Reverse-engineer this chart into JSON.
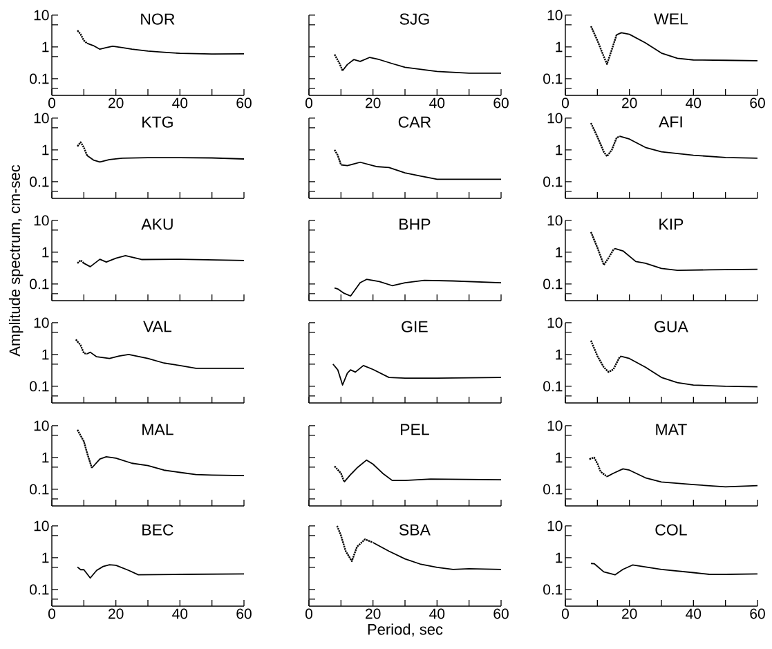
{
  "chart_data": [
    {
      "type": "line",
      "title": "NOR",
      "log": "y",
      "xlim": [
        0,
        60
      ],
      "xticks": [
        0,
        {
          "value": 10,
          "label": null
        },
        20,
        {
          "value": 30,
          "label": null
        },
        40,
        {
          "value": 50,
          "label": null
        },
        60
      ],
      "ylim": [
        0.03,
        10
      ],
      "yticks": [
        {
          "value": 0.05,
          "label": null
        },
        0.1,
        {
          "value": 0.5,
          "label": null
        },
        1,
        {
          "value": 5,
          "label": null
        },
        10
      ],
      "series": [
        {
          "line_style": "dotted",
          "color": "#000000",
          "x": [
            8,
            9,
            10,
            11
          ],
          "values": [
            3.3,
            2.5,
            1.6,
            1.3
          ]
        },
        {
          "line_style": "solid",
          "color": "#000000",
          "x": [
            11,
            13,
            15,
            17,
            19,
            22,
            25,
            30,
            35,
            40,
            50,
            60
          ],
          "values": [
            1.3,
            1.1,
            0.85,
            0.95,
            1.05,
            0.95,
            0.85,
            0.74,
            0.68,
            0.63,
            0.6,
            0.61
          ]
        }
      ]
    },
    {
      "type": "line",
      "title": "SJG",
      "log": "y",
      "tick_labels": "x",
      "xlim": [
        0,
        60
      ],
      "xticks": [
        0,
        {
          "value": 10,
          "label": null
        },
        20,
        {
          "value": 30,
          "label": null
        },
        40,
        {
          "value": 50,
          "label": null
        },
        60
      ],
      "ylim": [
        0.03,
        10
      ],
      "yticks": [
        {
          "value": 0.05,
          "label": null
        },
        {
          "value": 0.1,
          "label": null
        },
        {
          "value": 0.5,
          "label": null
        },
        {
          "value": 1,
          "label": null
        },
        {
          "value": 5,
          "label": null
        },
        {
          "value": 10,
          "label": null
        }
      ],
      "series": [
        {
          "line_style": "dotted",
          "color": "#000000",
          "x": [
            8,
            9.5,
            10.5
          ],
          "values": [
            0.58,
            0.31,
            0.18
          ]
        },
        {
          "line_style": "solid",
          "color": "#000000",
          "x": [
            10.5,
            12,
            14,
            16,
            19,
            22,
            26,
            30,
            40,
            50,
            60
          ],
          "values": [
            0.18,
            0.28,
            0.4,
            0.35,
            0.47,
            0.4,
            0.3,
            0.23,
            0.17,
            0.15,
            0.15
          ]
        }
      ]
    },
    {
      "type": "line",
      "title": "WEL",
      "log": "y",
      "xlim": [
        0,
        60
      ],
      "xticks": [
        0,
        {
          "value": 10,
          "label": null
        },
        20,
        {
          "value": 30,
          "label": null
        },
        40,
        {
          "value": 50,
          "label": null
        },
        60
      ],
      "ylim": [
        0.03,
        10
      ],
      "yticks": [
        {
          "value": 0.05,
          "label": null
        },
        0.1,
        {
          "value": 0.5,
          "label": null
        },
        1,
        {
          "value": 5,
          "label": null
        },
        10
      ],
      "series": [
        {
          "line_style": "dotted",
          "color": "#000000",
          "x": [
            8,
            10,
            12,
            13,
            14.5,
            16
          ],
          "values": [
            4.5,
            1.6,
            0.5,
            0.29,
            0.82,
            2.4
          ]
        },
        {
          "line_style": "solid",
          "color": "#000000",
          "x": [
            16,
            17.5,
            20,
            25,
            30,
            35,
            40,
            50,
            60
          ],
          "values": [
            2.4,
            2.8,
            2.5,
            1.35,
            0.64,
            0.44,
            0.39,
            0.38,
            0.37
          ]
        }
      ]
    },
    {
      "type": "line",
      "title": "KTG",
      "log": "y",
      "tick_labels": "y",
      "xlim": [
        0,
        60
      ],
      "xticks": [
        0,
        {
          "value": 10,
          "label": null
        },
        20,
        {
          "value": 30,
          "label": null
        },
        40,
        {
          "value": 50,
          "label": null
        },
        60
      ],
      "ylim": [
        0.03,
        10
      ],
      "yticks": [
        {
          "value": 0.05,
          "label": null
        },
        0.1,
        {
          "value": 0.5,
          "label": null
        },
        1,
        {
          "value": 5,
          "label": null
        },
        10
      ],
      "series": [
        {
          "line_style": "dotted",
          "color": "#000000",
          "x": [
            8,
            9,
            10,
            11
          ],
          "values": [
            1.3,
            1.76,
            1.2,
            0.67
          ]
        },
        {
          "line_style": "solid",
          "color": "#000000",
          "x": [
            11,
            13,
            15,
            18,
            22,
            30,
            40,
            50,
            60
          ],
          "values": [
            0.67,
            0.48,
            0.42,
            0.5,
            0.55,
            0.57,
            0.57,
            0.56,
            0.52
          ]
        }
      ]
    },
    {
      "type": "line",
      "title": "CAR",
      "log": "y",
      "tick_labels": false,
      "xlim": [
        0,
        60
      ],
      "xticks": [
        0,
        {
          "value": 10,
          "label": null
        },
        20,
        {
          "value": 30,
          "label": null
        },
        40,
        {
          "value": 50,
          "label": null
        },
        60
      ],
      "ylim": [
        0.03,
        10
      ],
      "yticks": [
        {
          "value": 0.05,
          "label": null
        },
        {
          "value": 0.1,
          "label": null
        },
        {
          "value": 0.5,
          "label": null
        },
        {
          "value": 1,
          "label": null
        },
        {
          "value": 5,
          "label": null
        },
        {
          "value": 10,
          "label": null
        }
      ],
      "series": [
        {
          "line_style": "dotted",
          "color": "#000000",
          "x": [
            8,
            9,
            10
          ],
          "values": [
            1.0,
            0.68,
            0.34
          ]
        },
        {
          "line_style": "solid",
          "color": "#000000",
          "x": [
            10,
            12,
            16,
            21,
            25,
            30,
            35,
            40,
            45,
            60
          ],
          "values": [
            0.34,
            0.32,
            0.41,
            0.3,
            0.28,
            0.19,
            0.15,
            0.12,
            0.12,
            0.12
          ]
        }
      ]
    },
    {
      "type": "line",
      "title": "AFI",
      "log": "y",
      "tick_labels": "y",
      "xlim": [
        0,
        60
      ],
      "xticks": [
        0,
        {
          "value": 10,
          "label": null
        },
        20,
        {
          "value": 30,
          "label": null
        },
        40,
        {
          "value": 50,
          "label": null
        },
        60
      ],
      "ylim": [
        0.03,
        10
      ],
      "yticks": [
        {
          "value": 0.05,
          "label": null
        },
        0.1,
        {
          "value": 0.5,
          "label": null
        },
        1,
        {
          "value": 5,
          "label": null
        },
        10
      ],
      "series": [
        {
          "line_style": "dotted",
          "color": "#000000",
          "x": [
            8,
            10,
            12,
            13,
            14.5,
            16,
            17
          ],
          "values": [
            7,
            2.6,
            0.87,
            0.63,
            1.0,
            2.4,
            2.7
          ]
        },
        {
          "line_style": "solid",
          "color": "#000000",
          "x": [
            17,
            20,
            25,
            30,
            40,
            50,
            60
          ],
          "values": [
            2.7,
            2.2,
            1.2,
            0.87,
            0.68,
            0.58,
            0.55
          ]
        }
      ]
    },
    {
      "type": "line",
      "title": "AKU",
      "ylabel": "Amplitude spectrum, cm-sec",
      "log": "y",
      "tick_labels": "y",
      "xlim": [
        0,
        60
      ],
      "xticks": [
        0,
        {
          "value": 10,
          "label": null
        },
        20,
        {
          "value": 30,
          "label": null
        },
        40,
        {
          "value": 50,
          "label": null
        },
        60
      ],
      "ylim": [
        0.03,
        10
      ],
      "yticks": [
        {
          "value": 0.05,
          "label": null
        },
        0.1,
        {
          "value": 0.5,
          "label": null
        },
        1,
        {
          "value": 5,
          "label": null
        },
        10
      ],
      "series": [
        {
          "line_style": "dotted",
          "color": "#000000",
          "x": [
            8,
            9,
            10
          ],
          "values": [
            0.45,
            0.56,
            0.45
          ]
        },
        {
          "line_style": "solid",
          "color": "#000000",
          "x": [
            10,
            12,
            15,
            17,
            20,
            23,
            28,
            40,
            60
          ],
          "values": [
            0.45,
            0.35,
            0.6,
            0.49,
            0.65,
            0.78,
            0.59,
            0.6,
            0.55
          ]
        }
      ]
    },
    {
      "type": "line",
      "title": "BHP",
      "log": "y",
      "tick_labels": false,
      "xlim": [
        0,
        60
      ],
      "xticks": [
        0,
        {
          "value": 10,
          "label": null
        },
        20,
        {
          "value": 30,
          "label": null
        },
        40,
        {
          "value": 50,
          "label": null
        },
        60
      ],
      "ylim": [
        0.03,
        10
      ],
      "yticks": [
        {
          "value": 0.05,
          "label": null
        },
        {
          "value": 0.1,
          "label": null
        },
        {
          "value": 0.5,
          "label": null
        },
        {
          "value": 1,
          "label": null
        },
        {
          "value": 5,
          "label": null
        },
        {
          "value": 10,
          "label": null
        }
      ],
      "series": [
        {
          "line_style": "solid",
          "color": "#000000",
          "x": [
            8,
            9,
            11,
            13,
            16,
            18,
            22,
            26,
            30,
            36,
            45,
            60
          ],
          "values": [
            0.075,
            0.07,
            0.051,
            0.042,
            0.11,
            0.14,
            0.12,
            0.089,
            0.11,
            0.13,
            0.125,
            0.11
          ]
        }
      ]
    },
    {
      "type": "line",
      "title": "KIP",
      "log": "y",
      "tick_labels": "y",
      "xlim": [
        0,
        60
      ],
      "xticks": [
        0,
        {
          "value": 10,
          "label": null
        },
        20,
        {
          "value": 30,
          "label": null
        },
        40,
        {
          "value": 50,
          "label": null
        },
        60
      ],
      "ylim": [
        0.03,
        10
      ],
      "yticks": [
        {
          "value": 0.05,
          "label": null
        },
        0.1,
        {
          "value": 0.5,
          "label": null
        },
        1,
        {
          "value": 5,
          "label": null
        },
        10
      ],
      "series": [
        {
          "line_style": "dotted",
          "color": "#000000",
          "x": [
            8,
            10,
            12,
            13.5,
            15,
            15.5
          ],
          "values": [
            4.3,
            1.4,
            0.4,
            0.66,
            1.2,
            1.3
          ]
        },
        {
          "line_style": "solid",
          "color": "#000000",
          "x": [
            15.5,
            18,
            22,
            25,
            30,
            35,
            45,
            60
          ],
          "values": [
            1.3,
            1.1,
            0.51,
            0.45,
            0.31,
            0.27,
            0.28,
            0.29
          ]
        }
      ]
    },
    {
      "type": "line",
      "title": "VAL",
      "log": "y",
      "tick_labels": "y",
      "xlim": [
        0,
        60
      ],
      "xticks": [
        0,
        {
          "value": 10,
          "label": null
        },
        20,
        {
          "value": 30,
          "label": null
        },
        40,
        {
          "value": 50,
          "label": null
        },
        60
      ],
      "ylim": [
        0.03,
        10
      ],
      "yticks": [
        {
          "value": 0.05,
          "label": null
        },
        0.1,
        {
          "value": 0.5,
          "label": null
        },
        1,
        {
          "value": 5,
          "label": null
        },
        10
      ],
      "series": [
        {
          "line_style": "dotted",
          "color": "#000000",
          "x": [
            7.5,
            9,
            10,
            11
          ],
          "values": [
            2.96,
            1.95,
            1.1,
            1.05
          ]
        },
        {
          "line_style": "solid",
          "color": "#000000",
          "x": [
            11,
            12,
            14,
            18,
            21,
            24,
            30,
            35,
            40,
            45,
            50,
            60
          ],
          "values": [
            1.05,
            1.18,
            0.85,
            0.75,
            0.9,
            1.0,
            0.75,
            0.54,
            0.45,
            0.37,
            0.37,
            0.37
          ]
        }
      ]
    },
    {
      "type": "line",
      "title": "GIE",
      "log": "y",
      "tick_labels": false,
      "xlim": [
        0,
        60
      ],
      "xticks": [
        0,
        {
          "value": 10,
          "label": null
        },
        20,
        {
          "value": 30,
          "label": null
        },
        40,
        {
          "value": 50,
          "label": null
        },
        60
      ],
      "ylim": [
        0.03,
        10
      ],
      "yticks": [
        {
          "value": 0.05,
          "label": null
        },
        {
          "value": 0.1,
          "label": null
        },
        {
          "value": 0.5,
          "label": null
        },
        {
          "value": 1,
          "label": null
        },
        {
          "value": 5,
          "label": null
        },
        {
          "value": 10,
          "label": null
        }
      ],
      "series": [
        {
          "line_style": "solid",
          "color": "#000000",
          "x": [
            7.5,
            9,
            10.5,
            12,
            13,
            14.5,
            17,
            20,
            25,
            30,
            40,
            60
          ],
          "values": [
            0.5,
            0.33,
            0.11,
            0.26,
            0.33,
            0.28,
            0.45,
            0.34,
            0.19,
            0.18,
            0.18,
            0.19
          ]
        }
      ]
    },
    {
      "type": "line",
      "title": "GUA",
      "log": "y",
      "tick_labels": "y",
      "xlim": [
        0,
        60
      ],
      "xticks": [
        0,
        {
          "value": 10,
          "label": null
        },
        20,
        {
          "value": 30,
          "label": null
        },
        40,
        {
          "value": 50,
          "label": null
        },
        60
      ],
      "ylim": [
        0.03,
        10
      ],
      "yticks": [
        {
          "value": 0.05,
          "label": null
        },
        0.1,
        {
          "value": 0.5,
          "label": null
        },
        1,
        {
          "value": 5,
          "label": null
        },
        10
      ],
      "series": [
        {
          "line_style": "dotted",
          "color": "#000000",
          "x": [
            8,
            10,
            12,
            13.5,
            15,
            17,
            17.5
          ],
          "values": [
            2.75,
            0.9,
            0.4,
            0.28,
            0.34,
            0.85,
            0.87
          ]
        },
        {
          "line_style": "solid",
          "color": "#000000",
          "x": [
            17.5,
            20,
            25,
            30,
            35,
            40,
            50,
            60
          ],
          "values": [
            0.87,
            0.75,
            0.4,
            0.19,
            0.13,
            0.11,
            0.1,
            0.097
          ]
        }
      ]
    },
    {
      "type": "line",
      "title": "MAL",
      "log": "y",
      "tick_labels": "y",
      "xlim": [
        0,
        60
      ],
      "xticks": [
        0,
        {
          "value": 10,
          "label": null
        },
        20,
        {
          "value": 30,
          "label": null
        },
        40,
        {
          "value": 50,
          "label": null
        },
        60
      ],
      "ylim": [
        0.03,
        10
      ],
      "yticks": [
        {
          "value": 0.05,
          "label": null
        },
        0.1,
        {
          "value": 0.5,
          "label": null
        },
        1,
        {
          "value": 5,
          "label": null
        },
        10
      ],
      "series": [
        {
          "line_style": "dotted",
          "color": "#000000",
          "x": [
            8,
            10,
            11,
            12.5
          ],
          "values": [
            7.4,
            3.2,
            1.4,
            0.47
          ]
        },
        {
          "line_style": "solid",
          "color": "#000000",
          "x": [
            12.5,
            15,
            17,
            20,
            25,
            30,
            35,
            40,
            45,
            50,
            60
          ],
          "values": [
            0.47,
            0.9,
            1.05,
            0.95,
            0.66,
            0.56,
            0.4,
            0.34,
            0.29,
            0.28,
            0.27
          ]
        }
      ]
    },
    {
      "type": "line",
      "title": "PEL",
      "log": "y",
      "tick_labels": false,
      "xlim": [
        0,
        60
      ],
      "xticks": [
        0,
        {
          "value": 10,
          "label": null
        },
        20,
        {
          "value": 30,
          "label": null
        },
        40,
        {
          "value": 50,
          "label": null
        },
        60
      ],
      "ylim": [
        0.03,
        10
      ],
      "yticks": [
        {
          "value": 0.05,
          "label": null
        },
        {
          "value": 0.1,
          "label": null
        },
        {
          "value": 0.5,
          "label": null
        },
        {
          "value": 1,
          "label": null
        },
        {
          "value": 5,
          "label": null
        },
        {
          "value": 10,
          "label": null
        }
      ],
      "series": [
        {
          "line_style": "dotted",
          "color": "#000000",
          "x": [
            8,
            10,
            11
          ],
          "values": [
            0.53,
            0.32,
            0.17
          ]
        },
        {
          "line_style": "solid",
          "color": "#000000",
          "x": [
            11,
            13,
            15,
            18,
            20,
            23,
            26,
            30,
            38,
            60
          ],
          "values": [
            0.17,
            0.29,
            0.47,
            0.83,
            0.62,
            0.32,
            0.19,
            0.19,
            0.21,
            0.2
          ]
        }
      ]
    },
    {
      "type": "line",
      "title": "MAT",
      "log": "y",
      "tick_labels": "y",
      "xlim": [
        0,
        60
      ],
      "xticks": [
        0,
        {
          "value": 10,
          "label": null
        },
        20,
        {
          "value": 30,
          "label": null
        },
        40,
        {
          "value": 50,
          "label": null
        },
        60
      ],
      "ylim": [
        0.03,
        10
      ],
      "yticks": [
        {
          "value": 0.05,
          "label": null
        },
        0.1,
        {
          "value": 0.5,
          "label": null
        },
        1,
        {
          "value": 5,
          "label": null
        },
        10
      ],
      "series": [
        {
          "line_style": "dotted",
          "color": "#000000",
          "x": [
            7.5,
            9,
            10,
            11,
            13
          ],
          "values": [
            0.89,
            1.0,
            0.65,
            0.36,
            0.25
          ]
        },
        {
          "line_style": "solid",
          "color": "#000000",
          "x": [
            13,
            15,
            18,
            20,
            25,
            30,
            40,
            50,
            60
          ],
          "values": [
            0.25,
            0.32,
            0.44,
            0.4,
            0.23,
            0.17,
            0.14,
            0.12,
            0.13
          ]
        }
      ]
    },
    {
      "type": "line",
      "title": "BEC",
      "log": "y",
      "xlim": [
        0,
        60
      ],
      "xticks": [
        0,
        {
          "value": 10,
          "label": null
        },
        20,
        {
          "value": 30,
          "label": null
        },
        40,
        {
          "value": 50,
          "label": null
        },
        60
      ],
      "ylim": [
        0.03,
        10
      ],
      "yticks": [
        {
          "value": 0.05,
          "label": null
        },
        0.1,
        {
          "value": 0.5,
          "label": null
        },
        1,
        {
          "value": 5,
          "label": null
        },
        10
      ],
      "series": [
        {
          "line_style": "solid",
          "color": "#000000",
          "x": [
            8,
            9,
            10,
            12,
            14,
            16,
            18,
            20,
            24,
            27,
            40,
            60
          ],
          "values": [
            0.51,
            0.42,
            0.42,
            0.23,
            0.4,
            0.53,
            0.6,
            0.58,
            0.4,
            0.29,
            0.3,
            0.31
          ]
        }
      ]
    },
    {
      "type": "line",
      "title": "SBA",
      "xlabel": "Period, sec",
      "log": "y",
      "tick_labels": "x",
      "xlim": [
        0,
        60
      ],
      "xticks": [
        0,
        {
          "value": 10,
          "label": null
        },
        20,
        {
          "value": 30,
          "label": null
        },
        40,
        {
          "value": 50,
          "label": null
        },
        60
      ],
      "ylim": [
        0.03,
        10
      ],
      "yticks": [
        {
          "value": 0.05,
          "label": null
        },
        {
          "value": 0.1,
          "label": null
        },
        {
          "value": 0.5,
          "label": null
        },
        {
          "value": 1,
          "label": null
        },
        {
          "value": 5,
          "label": null
        },
        {
          "value": 10,
          "label": null
        }
      ],
      "series": [
        {
          "line_style": "dotted",
          "color": "#000000",
          "x": [
            8.8,
            10,
            11.5,
            13.4,
            15,
            17.5,
            20
          ],
          "values": [
            10,
            5,
            1.6,
            0.78,
            2.2,
            3.8,
            3.0
          ]
        },
        {
          "line_style": "solid",
          "color": "#000000",
          "x": [
            20,
            25,
            30,
            35,
            40,
            45,
            50,
            60
          ],
          "values": [
            3.0,
            1.6,
            0.92,
            0.62,
            0.5,
            0.43,
            0.45,
            0.43
          ]
        }
      ]
    },
    {
      "type": "line",
      "title": "COL",
      "log": "y",
      "xlim": [
        0,
        60
      ],
      "xticks": [
        0,
        {
          "value": 10,
          "label": null
        },
        20,
        {
          "value": 30,
          "label": null
        },
        40,
        {
          "value": 50,
          "label": null
        },
        60
      ],
      "ylim": [
        0.03,
        10
      ],
      "yticks": [
        {
          "value": 0.05,
          "label": null
        },
        0.1,
        {
          "value": 0.5,
          "label": null
        },
        1,
        {
          "value": 5,
          "label": null
        },
        10
      ],
      "series": [
        {
          "line_style": "solid",
          "color": "#000000",
          "x": [
            8,
            9,
            12,
            15.5,
            18,
            21,
            30,
            40,
            45,
            50,
            60
          ],
          "values": [
            0.66,
            0.65,
            0.36,
            0.29,
            0.43,
            0.59,
            0.43,
            0.34,
            0.3,
            0.3,
            0.31
          ]
        }
      ]
    }
  ]
}
